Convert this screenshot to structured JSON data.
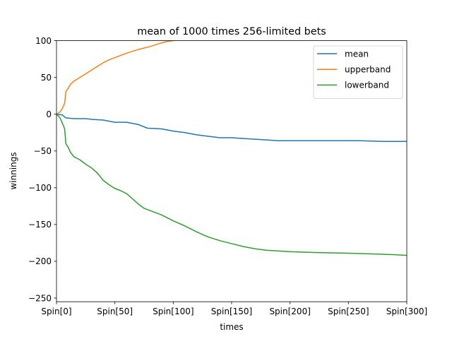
{
  "chart_data": {
    "type": "line",
    "title": "mean of 1000 times 256-limited bets",
    "xlabel": "times",
    "ylabel": "winnings",
    "xlim": [
      0,
      300
    ],
    "ylim": [
      -255,
      100
    ],
    "xticks": [
      0,
      50,
      100,
      150,
      200,
      250,
      300
    ],
    "xtick_labels": [
      "Spin[0]",
      "Spin[50]",
      "Spin[100]",
      "Spin[150]",
      "Spin[200]",
      "Spin[250]",
      "Spin[300]"
    ],
    "yticks": [
      100,
      50,
      0,
      -50,
      -100,
      -150,
      -200,
      -250
    ],
    "ytick_labels": [
      "100",
      "50",
      "0",
      "−50",
      "−100",
      "−150",
      "−200",
      "−250"
    ],
    "grid": false,
    "legend_position": "top-right",
    "series": [
      {
        "name": "mean",
        "color": "#1f77b4",
        "x": [
          0,
          5,
          8,
          15,
          25,
          30,
          40,
          50,
          60,
          70,
          78,
          90,
          100,
          110,
          120,
          130,
          140,
          150,
          160,
          170,
          180,
          190,
          200,
          220,
          240,
          260,
          280,
          300
        ],
        "y": [
          0,
          -1,
          -5,
          -6,
          -6,
          -7,
          -8,
          -11,
          -11,
          -14,
          -19,
          -20,
          -23,
          -25,
          -28,
          -30,
          -32,
          -32,
          -33,
          -34,
          -35,
          -36,
          -36,
          -36,
          -36,
          -36,
          -37,
          -37
        ]
      },
      {
        "name": "upperband",
        "color": "#ff7f0e",
        "x": [
          0,
          3,
          5,
          7,
          8,
          10,
          12,
          15,
          20,
          25,
          30,
          35,
          40,
          45,
          50,
          60,
          70,
          80,
          90,
          95,
          100
        ],
        "y": [
          0,
          3,
          8,
          15,
          31,
          35,
          41,
          45,
          50,
          55,
          60,
          65,
          70,
          74,
          77,
          83,
          88,
          92,
          97,
          99,
          100
        ]
      },
      {
        "name": "lowerband",
        "color": "#2ca02c",
        "x": [
          0,
          3,
          5,
          7,
          8,
          10,
          12,
          15,
          20,
          25,
          30,
          35,
          40,
          45,
          50,
          55,
          60,
          65,
          70,
          75,
          80,
          90,
          100,
          110,
          120,
          130,
          140,
          150,
          160,
          170,
          180,
          190,
          200,
          220,
          250,
          270,
          290,
          300
        ],
        "y": [
          0,
          -5,
          -12,
          -20,
          -40,
          -45,
          -52,
          -58,
          -62,
          -68,
          -73,
          -80,
          -90,
          -96,
          -101,
          -104,
          -108,
          -115,
          -122,
          -128,
          -131,
          -137,
          -145,
          -152,
          -160,
          -167,
          -172,
          -176,
          -180,
          -183,
          -185,
          -186,
          -187,
          -188,
          -189,
          -190,
          -191,
          -192
        ]
      }
    ]
  }
}
